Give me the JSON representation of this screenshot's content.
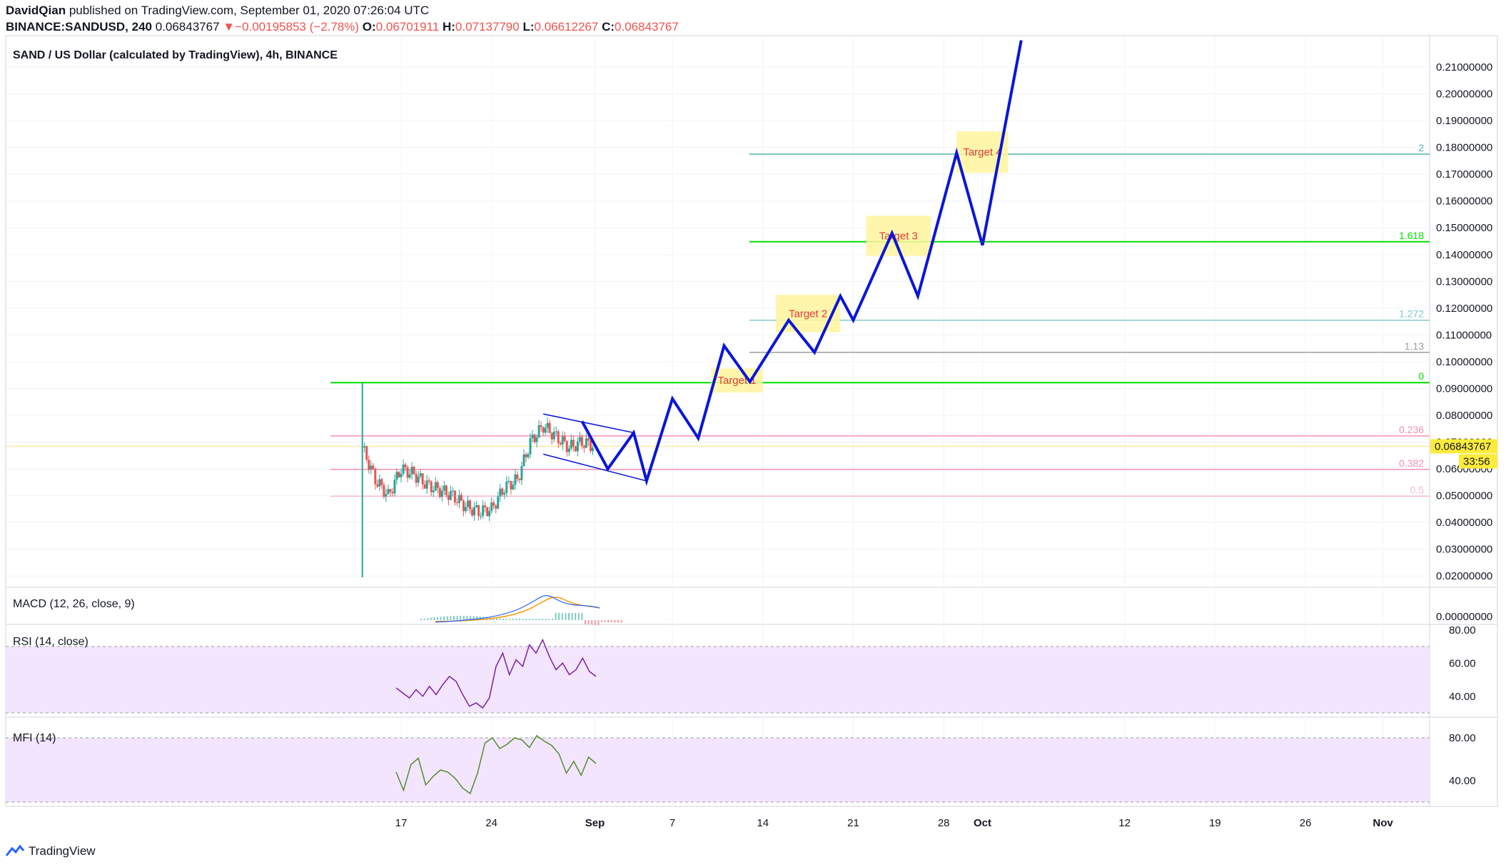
{
  "header": {
    "author": "DavidQian",
    "published_text": " published on TradingView.com, September 01, 2020 07:26:04 UTC",
    "symbol": "BINANCE:SANDUSD, 240",
    "last": "0.06843767",
    "change_arrow": "▼",
    "change": "−0.00195853 (−2.78%)",
    "o_label": "O:",
    "o_value": "0.06701911",
    "h_label": "H:",
    "h_value": "0.07137790",
    "l_label": "L:",
    "l_value": "0.06612267",
    "c_label": "C:",
    "c_value": "0.06843767"
  },
  "footer": {
    "brand": "TradingView"
  },
  "colors": {
    "up": "#26a69a",
    "down": "#ef5350",
    "projection": "#0a16d8",
    "fib_green": "#00e000",
    "rsi_line": "#7b1fa2",
    "mfi_line": "#558b2f",
    "panel_fill": "#f3e5fd",
    "target_box": "#fff59d",
    "target_text": "#e53935"
  },
  "chart_data": {
    "type": "line",
    "title": "SAND / US Dollar (calculated by TradingView), 4h, BINANCE",
    "ylim": [
      0.013,
      0.225
    ],
    "y_ticks": [
      "0.21000000",
      "0.20000000",
      "0.19000000",
      "0.18000000",
      "0.17000000",
      "0.16000000",
      "0.15000000",
      "0.14000000",
      "0.13000000",
      "0.12000000",
      "0.11000000",
      "0.10000000",
      "0.09000000",
      "0.08000000",
      "0.07000000",
      "0.06000000",
      "0.05000000",
      "0.04000000",
      "0.03000000",
      "0.02000000"
    ],
    "x_ticks": [
      "17",
      "24",
      "Sep",
      "7",
      "14",
      "21",
      "28",
      "Oct",
      "12",
      "19",
      "26",
      "Nov"
    ],
    "current_price": "0.06843767",
    "countdown": "33:56",
    "fib_levels": [
      {
        "label": "2",
        "value": 0.1775
      },
      {
        "label": "1.618",
        "value": 0.1448
      },
      {
        "label": "1.272",
        "value": 0.1155
      },
      {
        "label": "1.13",
        "value": 0.1035
      },
      {
        "label": "0",
        "value": 0.0922
      },
      {
        "label": "0.236",
        "value": 0.0723
      },
      {
        "label": "0.382",
        "value": 0.0598
      },
      {
        "label": "0.5",
        "value": 0.0498
      }
    ],
    "targets": [
      "Target 1",
      "Target 2",
      "Target 3",
      "Target 4"
    ],
    "projection_path": [
      {
        "date": "2020-08-31",
        "price": 0.0778
      },
      {
        "date": "2020-09-02",
        "price": 0.06
      },
      {
        "date": "2020-09-04",
        "price": 0.0735
      },
      {
        "date": "2020-09-05",
        "price": 0.0555
      },
      {
        "date": "2020-09-07",
        "price": 0.0862
      },
      {
        "date": "2020-09-09",
        "price": 0.0715
      },
      {
        "date": "2020-09-11",
        "price": 0.106
      },
      {
        "date": "2020-09-13",
        "price": 0.0925
      },
      {
        "date": "2020-09-16",
        "price": 0.1155
      },
      {
        "date": "2020-09-18",
        "price": 0.1035
      },
      {
        "date": "2020-09-20",
        "price": 0.1245
      },
      {
        "date": "2020-09-21",
        "price": 0.1155
      },
      {
        "date": "2020-09-24",
        "price": 0.148
      },
      {
        "date": "2020-09-26",
        "price": 0.1245
      },
      {
        "date": "2020-09-29",
        "price": 0.178
      },
      {
        "date": "2020-10-01",
        "price": 0.1435
      },
      {
        "date": "2020-10-04",
        "price": 0.22
      }
    ],
    "channel": {
      "upper": [
        {
          "date": "2020-08-28",
          "price": 0.0805
        },
        {
          "date": "2020-09-04",
          "price": 0.0735
        }
      ],
      "lower": [
        {
          "date": "2020-08-28",
          "price": 0.0655
        },
        {
          "date": "2020-09-05",
          "price": 0.0555
        }
      ]
    },
    "price_series": [
      {
        "date": "2020-08-14",
        "price": 0.068
      },
      {
        "date": "2020-08-15",
        "price": 0.056
      },
      {
        "date": "2020-08-16",
        "price": 0.05
      },
      {
        "date": "2020-08-17",
        "price": 0.06
      },
      {
        "date": "2020-08-18",
        "price": 0.058
      },
      {
        "date": "2020-08-19",
        "price": 0.054
      },
      {
        "date": "2020-08-20",
        "price": 0.052
      },
      {
        "date": "2020-08-21",
        "price": 0.05
      },
      {
        "date": "2020-08-22",
        "price": 0.046
      },
      {
        "date": "2020-08-23",
        "price": 0.044
      },
      {
        "date": "2020-08-24",
        "price": 0.045
      },
      {
        "date": "2020-08-25",
        "price": 0.053
      },
      {
        "date": "2020-08-26",
        "price": 0.056
      },
      {
        "date": "2020-08-27",
        "price": 0.07
      },
      {
        "date": "2020-08-28",
        "price": 0.076
      },
      {
        "date": "2020-08-29",
        "price": 0.072
      },
      {
        "date": "2020-08-30",
        "price": 0.068
      },
      {
        "date": "2020-08-31",
        "price": 0.07
      },
      {
        "date": "2020-09-01",
        "price": 0.0684
      }
    ],
    "indicators": [
      {
        "name": "MACD (12, 26, close, 9)",
        "y_tick": "0.00000000"
      },
      {
        "name": "RSI (14, close)",
        "y_ticks": [
          "80.00",
          "60.00",
          "40.00"
        ],
        "values": [
          45,
          42,
          39,
          44,
          40,
          46,
          41,
          47,
          52,
          49,
          41,
          34,
          36,
          33,
          39,
          58,
          66,
          53,
          62,
          58,
          71,
          66,
          74,
          64,
          56,
          60,
          53,
          56,
          63,
          55,
          52
        ]
      },
      {
        "name": "MFI (14)",
        "y_ticks": [
          "80.00",
          "40.00"
        ],
        "values": [
          48,
          31,
          55,
          61,
          36,
          44,
          50,
          48,
          42,
          33,
          28,
          47,
          75,
          80,
          70,
          74,
          80,
          78,
          71,
          82,
          77,
          73,
          65,
          47,
          58,
          45,
          62,
          56
        ]
      }
    ]
  }
}
